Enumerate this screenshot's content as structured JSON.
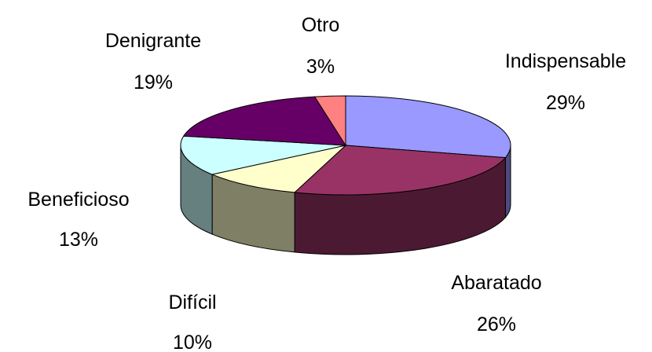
{
  "chart_data": {
    "type": "pie3d",
    "categories": [
      "Indispensable",
      "Abaratado",
      "Difícil",
      "Beneficioso",
      "Denigrante",
      "Otro"
    ],
    "values": [
      29,
      26,
      10,
      13,
      19,
      3
    ],
    "value_labels": [
      "29%",
      "26%",
      "10%",
      "13%",
      "19%",
      "3%"
    ],
    "colors": [
      "#9999ff",
      "#993366",
      "#ffffcc",
      "#ccffff",
      "#660066",
      "#ff8080"
    ]
  }
}
